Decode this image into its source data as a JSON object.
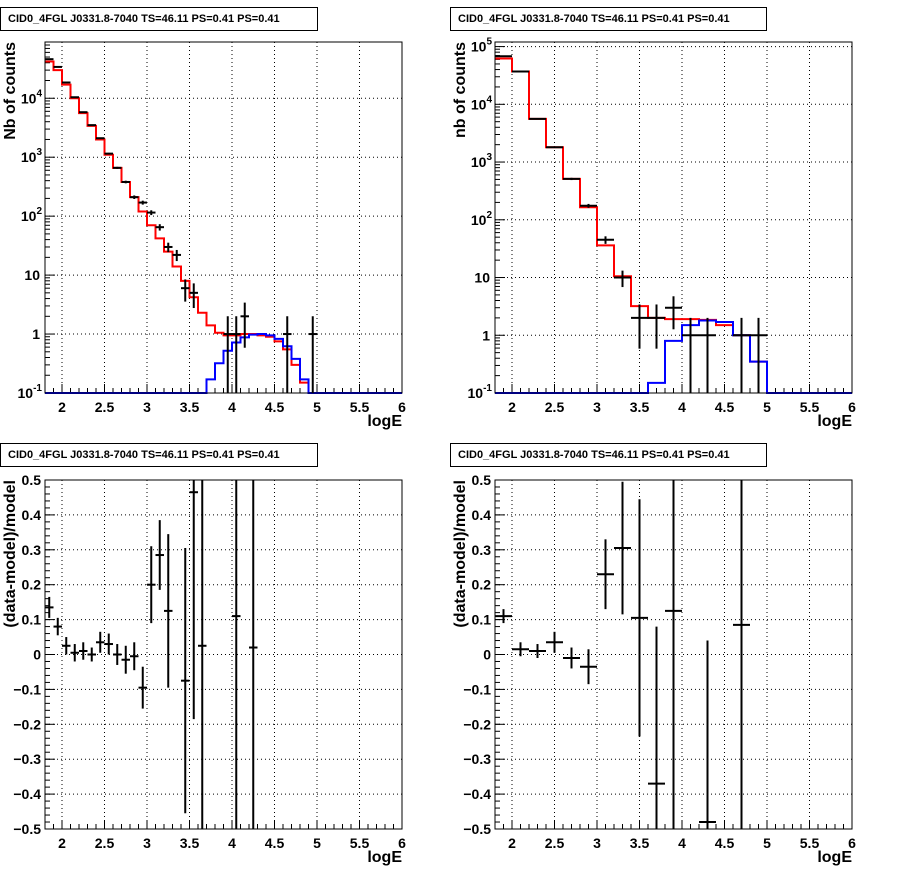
{
  "colors": {
    "data": "#000000",
    "model_total": "#ff0000",
    "model_source": "#0000ff",
    "grid": "#000000",
    "background": "#ffffff"
  },
  "panels": [
    {
      "title": "CID0_4FGL J0331.8-7040 TS=46.11 PS=0.41 PS=0.41",
      "chart_data": {
        "type": "histogram",
        "log_y": true,
        "grid": true,
        "xlabel": "logE",
        "ylabel": "Nb of counts",
        "xlim": [
          1.8,
          6.0
        ],
        "ylim": [
          0.1,
          90000
        ],
        "x_ticks": [
          "2",
          "2.5",
          "3",
          "3.5",
          "4",
          "4.5",
          "5",
          "5.5",
          "6"
        ],
        "y_ticks": [
          "10^-1",
          "1",
          "10",
          "10^2",
          "10^3",
          "10^4"
        ],
        "bin_edges": [
          1.8,
          1.9,
          2.0,
          2.1,
          2.2,
          2.3,
          2.4,
          2.5,
          2.6,
          2.7,
          2.8,
          2.9,
          3.0,
          3.1,
          3.2,
          3.3,
          3.4,
          3.5,
          3.6,
          3.7,
          3.8,
          3.9,
          4.0,
          4.1,
          4.2,
          4.3,
          4.4,
          4.5,
          4.6,
          4.7,
          4.8,
          4.9,
          5.0,
          5.1,
          5.2,
          5.3,
          5.4,
          5.5,
          5.6,
          5.7,
          5.8,
          5.9,
          6.0
        ],
        "series": [
          {
            "kind": "step",
            "color": "#ff0000",
            "values": [
              42000,
              30000,
              17000,
              10000,
              5600,
              3400,
              2000,
              1100,
              660,
              380,
              210,
              120,
              70,
              42,
              25,
              14,
              8,
              4.2,
              2.3,
              1.4,
              1.05,
              0.95,
              0.95,
              1.0,
              1.0,
              0.95,
              0.9,
              0.75,
              0.55,
              0.3,
              0.15,
              0.1,
              0.1,
              0.1,
              0.1,
              0.1,
              0.1,
              0.1,
              0.1,
              0.1,
              0.1,
              0.1
            ]
          },
          {
            "kind": "step",
            "color": "#0000ff",
            "values": [
              0.1,
              0.1,
              0.1,
              0.1,
              0.1,
              0.1,
              0.1,
              0.1,
              0.1,
              0.1,
              0.1,
              0.1,
              0.1,
              0.1,
              0.1,
              0.1,
              0.1,
              0.1,
              0.1,
              0.17,
              0.32,
              0.52,
              0.72,
              0.88,
              0.98,
              1.0,
              0.95,
              0.83,
              0.62,
              0.38,
              0.17,
              0.1,
              0.1,
              0.1,
              0.1,
              0.1,
              0.1,
              0.1,
              0.1,
              0.1,
              0.1,
              0.1
            ]
          },
          {
            "kind": "points",
            "color": "#000000",
            "points": [
              {
                "x": 1.85,
                "y": 46000
              },
              {
                "x": 1.95,
                "y": 34000
              },
              {
                "x": 2.05,
                "y": 18500
              },
              {
                "x": 2.15,
                "y": 10400
              },
              {
                "x": 2.25,
                "y": 5800
              },
              {
                "x": 2.35,
                "y": 3500
              },
              {
                "x": 2.45,
                "y": 2100
              },
              {
                "x": 2.55,
                "y": 1150
              },
              {
                "x": 2.65,
                "y": 660
              },
              {
                "x": 2.75,
                "y": 380
              },
              {
                "x": 2.85,
                "y": 210
              },
              {
                "x": 2.95,
                "y": 170
              },
              {
                "x": 3.05,
                "y": 115
              },
              {
                "x": 3.15,
                "y": 65
              },
              {
                "x": 3.25,
                "y": 30
              },
              {
                "x": 3.35,
                "y": 22
              },
              {
                "x": 3.45,
                "y": 6
              },
              {
                "x": 3.55,
                "y": 5
              },
              {
                "x": 3.95,
                "y": 1
              },
              {
                "x": 4.05,
                "y": 1
              },
              {
                "x": 4.15,
                "y": 2
              },
              {
                "x": 4.65,
                "y": 1
              },
              {
                "x": 4.95,
                "y": 1
              }
            ]
          }
        ]
      }
    },
    {
      "title": "CID0_4FGL J0331.8-7040 TS=46.11 PS=0.41 PS=0.41",
      "chart_data": {
        "type": "histogram",
        "log_y": true,
        "grid": true,
        "xlabel": "logE",
        "ylabel": "nb of counts",
        "xlim": [
          1.8,
          6.0
        ],
        "ylim": [
          0.1,
          120000
        ],
        "x_ticks": [
          "2",
          "2.5",
          "3",
          "3.5",
          "4",
          "4.5",
          "5",
          "5.5",
          "6"
        ],
        "y_ticks": [
          "10^-1",
          "1",
          "10",
          "10^2",
          "10^3",
          "10^4",
          "10^5"
        ],
        "bin_edges": [
          1.8,
          2.0,
          2.2,
          2.4,
          2.6,
          2.8,
          3.0,
          3.2,
          3.4,
          3.6,
          3.8,
          4.0,
          4.2,
          4.4,
          4.6,
          4.8,
          5.0,
          5.2,
          5.4,
          5.6,
          5.8,
          6.0
        ],
        "series": [
          {
            "kind": "step",
            "color": "#ff0000",
            "values": [
              62000,
              37000,
              5600,
              1800,
              510,
              165,
              36,
              10.5,
              3.2,
              2.0,
              1.9,
              1.9,
              1.85,
              1.5,
              1.0,
              0.35,
              0.1,
              0.1,
              0.1,
              0.1,
              0.1
            ]
          },
          {
            "kind": "step",
            "color": "#0000ff",
            "values": [
              0.1,
              0.1,
              0.1,
              0.1,
              0.1,
              0.1,
              0.1,
              0.1,
              0.1,
              0.15,
              0.8,
              1.5,
              1.8,
              1.7,
              1.0,
              0.35,
              0.1,
              0.1,
              0.1,
              0.1,
              0.1
            ]
          },
          {
            "kind": "points",
            "color": "#000000",
            "points": [
              {
                "x": 1.9,
                "y": 68000
              },
              {
                "x": 2.1,
                "y": 37000
              },
              {
                "x": 2.3,
                "y": 5600
              },
              {
                "x": 2.5,
                "y": 1800
              },
              {
                "x": 2.7,
                "y": 510
              },
              {
                "x": 2.9,
                "y": 175
              },
              {
                "x": 3.1,
                "y": 45
              },
              {
                "x": 3.3,
                "y": 10
              },
              {
                "x": 3.5,
                "y": 2
              },
              {
                "x": 3.7,
                "y": 2
              },
              {
                "x": 3.9,
                "y": 3
              },
              {
                "x": 4.1,
                "y": 1
              },
              {
                "x": 4.3,
                "y": 1
              },
              {
                "x": 4.7,
                "y": 1
              },
              {
                "x": 4.9,
                "y": 1
              }
            ]
          }
        ]
      }
    },
    {
      "title": "CID0_4FGL J0331.8-7040 TS=46.11 PS=0.41 PS=0.41",
      "chart_data": {
        "type": "scatter",
        "grid": true,
        "xlabel": "logE",
        "ylabel": "(data-model)/model",
        "xlim": [
          1.8,
          6.0
        ],
        "ylim": [
          -0.5,
          0.5
        ],
        "x_ticks": [
          "2",
          "2.5",
          "3",
          "3.5",
          "4",
          "4.5",
          "5",
          "5.5",
          "6"
        ],
        "y_ticks": [
          "−0.5",
          "−0.4",
          "−0.3",
          "−0.2",
          "−0.1",
          "0",
          "0.1",
          "0.2",
          "0.3",
          "0.4",
          "0.5"
        ],
        "xerr": 0.05,
        "points": [
          {
            "x": 1.85,
            "y": 0.135,
            "err": 0.03
          },
          {
            "x": 1.95,
            "y": 0.08,
            "err": 0.025
          },
          {
            "x": 2.05,
            "y": 0.025,
            "err": 0.025
          },
          {
            "x": 2.15,
            "y": 0.005,
            "err": 0.025
          },
          {
            "x": 2.25,
            "y": 0.01,
            "err": 0.025
          },
          {
            "x": 2.35,
            "y": 0.0,
            "err": 0.02
          },
          {
            "x": 2.45,
            "y": 0.035,
            "err": 0.03
          },
          {
            "x": 2.55,
            "y": 0.03,
            "err": 0.03
          },
          {
            "x": 2.65,
            "y": 0.0,
            "err": 0.03
          },
          {
            "x": 2.75,
            "y": -0.015,
            "err": 0.04
          },
          {
            "x": 2.85,
            "y": -0.005,
            "err": 0.04
          },
          {
            "x": 2.95,
            "y": -0.095,
            "err": 0.06
          },
          {
            "x": 3.05,
            "y": 0.2,
            "err": 0.11
          },
          {
            "x": 3.15,
            "y": 0.285,
            "err": 0.1
          },
          {
            "x": 3.25,
            "y": 0.125,
            "err": 0.22
          },
          {
            "x": 3.45,
            "y": -0.075,
            "err": 0.38
          },
          {
            "x": 3.55,
            "y": 0.465,
            "err": 0.65
          },
          {
            "x": 3.65,
            "y": 0.025,
            "err": 0.6
          },
          {
            "x": 4.05,
            "y": 0.11,
            "err": 1.0
          },
          {
            "x": 4.25,
            "y": 0.02,
            "err": 1.0
          }
        ]
      }
    },
    {
      "title": "CID0_4FGL J0331.8-7040 TS=46.11 PS=0.41 PS=0.41",
      "chart_data": {
        "type": "scatter",
        "grid": true,
        "xlabel": "logE",
        "ylabel": "(data-model)/model",
        "xlim": [
          1.8,
          6.0
        ],
        "ylim": [
          -0.5,
          0.5
        ],
        "x_ticks": [
          "2",
          "2.5",
          "3",
          "3.5",
          "4",
          "4.5",
          "5",
          "5.5",
          "6"
        ],
        "y_ticks": [
          "−0.5",
          "−0.4",
          "−0.3",
          "−0.2",
          "−0.1",
          "0",
          "0.1",
          "0.2",
          "0.3",
          "0.4",
          "0.5"
        ],
        "xerr": 0.1,
        "points": [
          {
            "x": 1.9,
            "y": 0.11,
            "err": 0.02
          },
          {
            "x": 2.1,
            "y": 0.015,
            "err": 0.02
          },
          {
            "x": 2.3,
            "y": 0.01,
            "err": 0.02
          },
          {
            "x": 2.5,
            "y": 0.035,
            "err": 0.03
          },
          {
            "x": 2.7,
            "y": -0.01,
            "err": 0.03
          },
          {
            "x": 2.9,
            "y": -0.035,
            "err": 0.05
          },
          {
            "x": 3.1,
            "y": 0.23,
            "err": 0.1
          },
          {
            "x": 3.3,
            "y": 0.305,
            "err": 0.19
          },
          {
            "x": 3.5,
            "y": 0.105,
            "err": 0.34
          },
          {
            "x": 3.7,
            "y": -0.37,
            "err": 0.45
          },
          {
            "x": 3.9,
            "y": 0.125,
            "err": 1.0
          },
          {
            "x": 4.3,
            "y": -0.48,
            "err": 0.52
          },
          {
            "x": 4.7,
            "y": 0.085,
            "err": 1.0
          }
        ]
      }
    }
  ]
}
